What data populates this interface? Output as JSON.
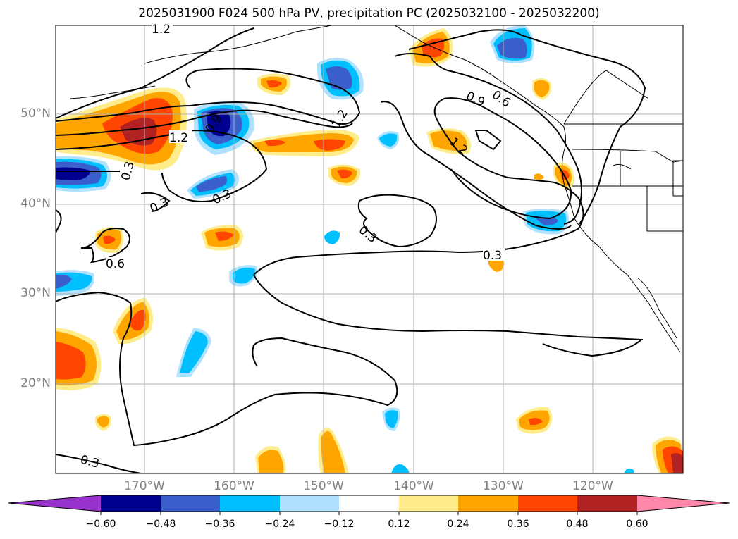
{
  "title": "2025031900 F024 500 hPa PV, precipitation PC (2025032100 - 2025032200)",
  "lat_labels": [
    "50°N",
    "40°N",
    "30°N",
    "20°N"
  ],
  "lon_labels": [
    "170°W",
    "160°W",
    "150°W",
    "140°W",
    "130°W",
    "120°W"
  ],
  "colorbar": {
    "ticks": [
      "−0.60",
      "−0.48",
      "−0.36",
      "−0.24",
      "−0.12",
      "0.12",
      "0.24",
      "0.36",
      "0.48",
      "0.60"
    ],
    "colors": [
      "#9932cc",
      "#000090",
      "#3a5fcd",
      "#00bfff",
      "#b0e2ff",
      "#ffffff",
      "#ffec8b",
      "#ffa500",
      "#ff4500",
      "#b22222",
      "#ff88aa"
    ]
  },
  "contour_labels": [
    "1.2",
    "0.9",
    "1.2",
    "1.2",
    "0.3",
    "0.3",
    "0.3",
    "0.6",
    "0.3",
    "0.9",
    "0.6",
    "1.2",
    "0.3",
    "0.3"
  ],
  "colors": {
    "coast": "#000000",
    "grid": "#b0b0b0"
  }
}
